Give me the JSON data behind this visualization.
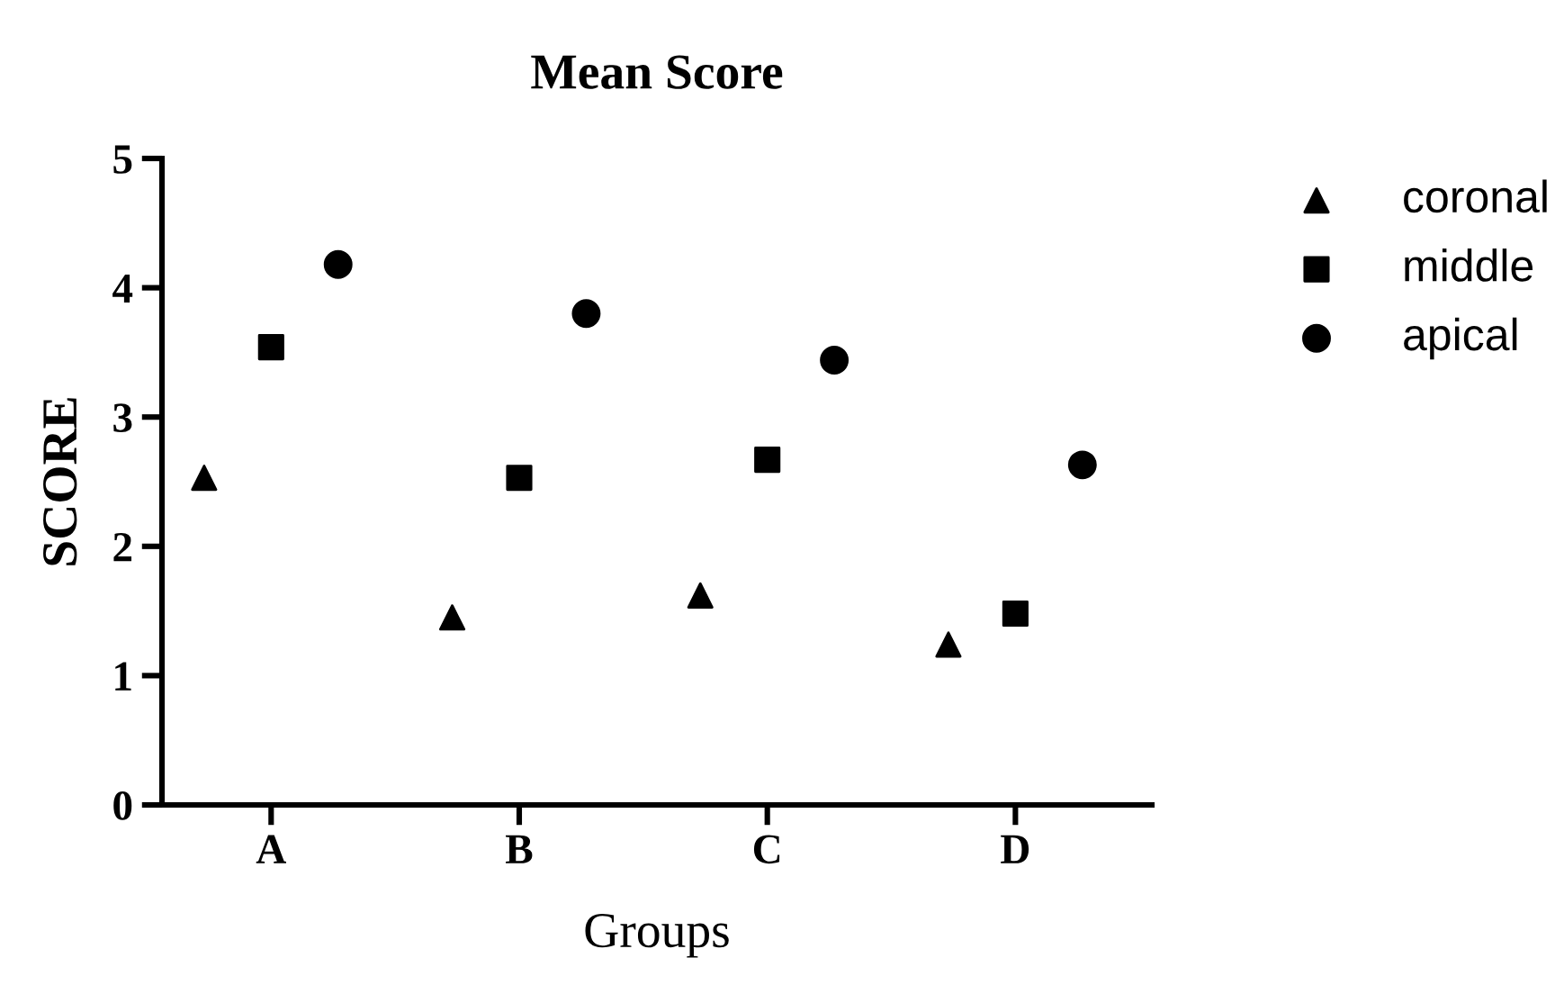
{
  "chart_data": {
    "type": "scatter",
    "title": "Mean Score",
    "xlabel": "Groups",
    "ylabel": "SCORE",
    "categories": [
      "A",
      "B",
      "C",
      "D"
    ],
    "series": [
      {
        "name": "coronal",
        "color": "#000000",
        "marker": "triangle",
        "values": [
          2.53,
          1.45,
          1.62,
          1.24
        ]
      },
      {
        "name": "middle",
        "color": "#000000",
        "marker": "square",
        "values": [
          3.54,
          2.53,
          2.67,
          1.48
        ]
      },
      {
        "name": "apical",
        "color": "#000000",
        "marker": "circle",
        "values": [
          4.18,
          3.8,
          3.44,
          2.63
        ]
      }
    ],
    "ylim": [
      0,
      5
    ],
    "yticks": [
      0,
      1,
      2,
      3,
      4,
      5
    ],
    "grid": false,
    "legend": "right"
  }
}
